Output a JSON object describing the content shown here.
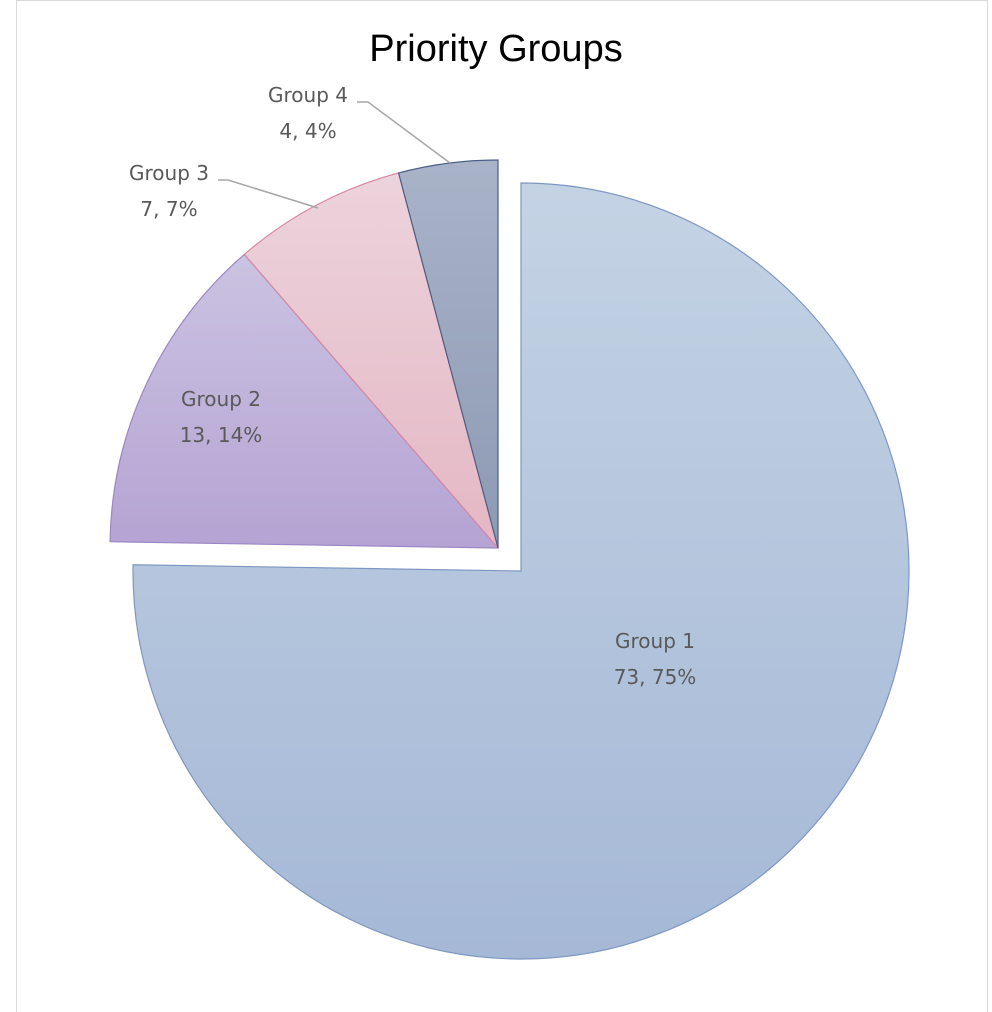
{
  "chart_data": {
    "type": "pie",
    "title": "Priority Groups",
    "slices": [
      {
        "category": "Group 1",
        "value": 73,
        "percent_label": "73, 75%",
        "color_top": "#c4d3e4",
        "color_bottom": "#a5b8d6",
        "stroke": "#7e97c2",
        "exploded": false
      },
      {
        "category": "Group 2",
        "value": 13,
        "percent_label": "13, 14%",
        "color_top": "#cbc3e2",
        "color_bottom": "#b5a3d3",
        "stroke": "#9d86c6",
        "exploded": true
      },
      {
        "category": "Group 3",
        "value": 7,
        "percent_label": "7, 7%",
        "color_top": "#ecd3dc",
        "color_bottom": "#e4b7c4",
        "stroke": "#d9879e",
        "exploded": true
      },
      {
        "category": "Group 4",
        "value": 4,
        "percent_label": "4, 4%",
        "color_top": "#a9b3c8",
        "color_bottom": "#8d9ab4",
        "stroke": "#4a5e86",
        "exploded": true
      }
    ],
    "start_angle": "12 o'clock",
    "direction": "clockwise",
    "labels": "category, value, percent"
  }
}
